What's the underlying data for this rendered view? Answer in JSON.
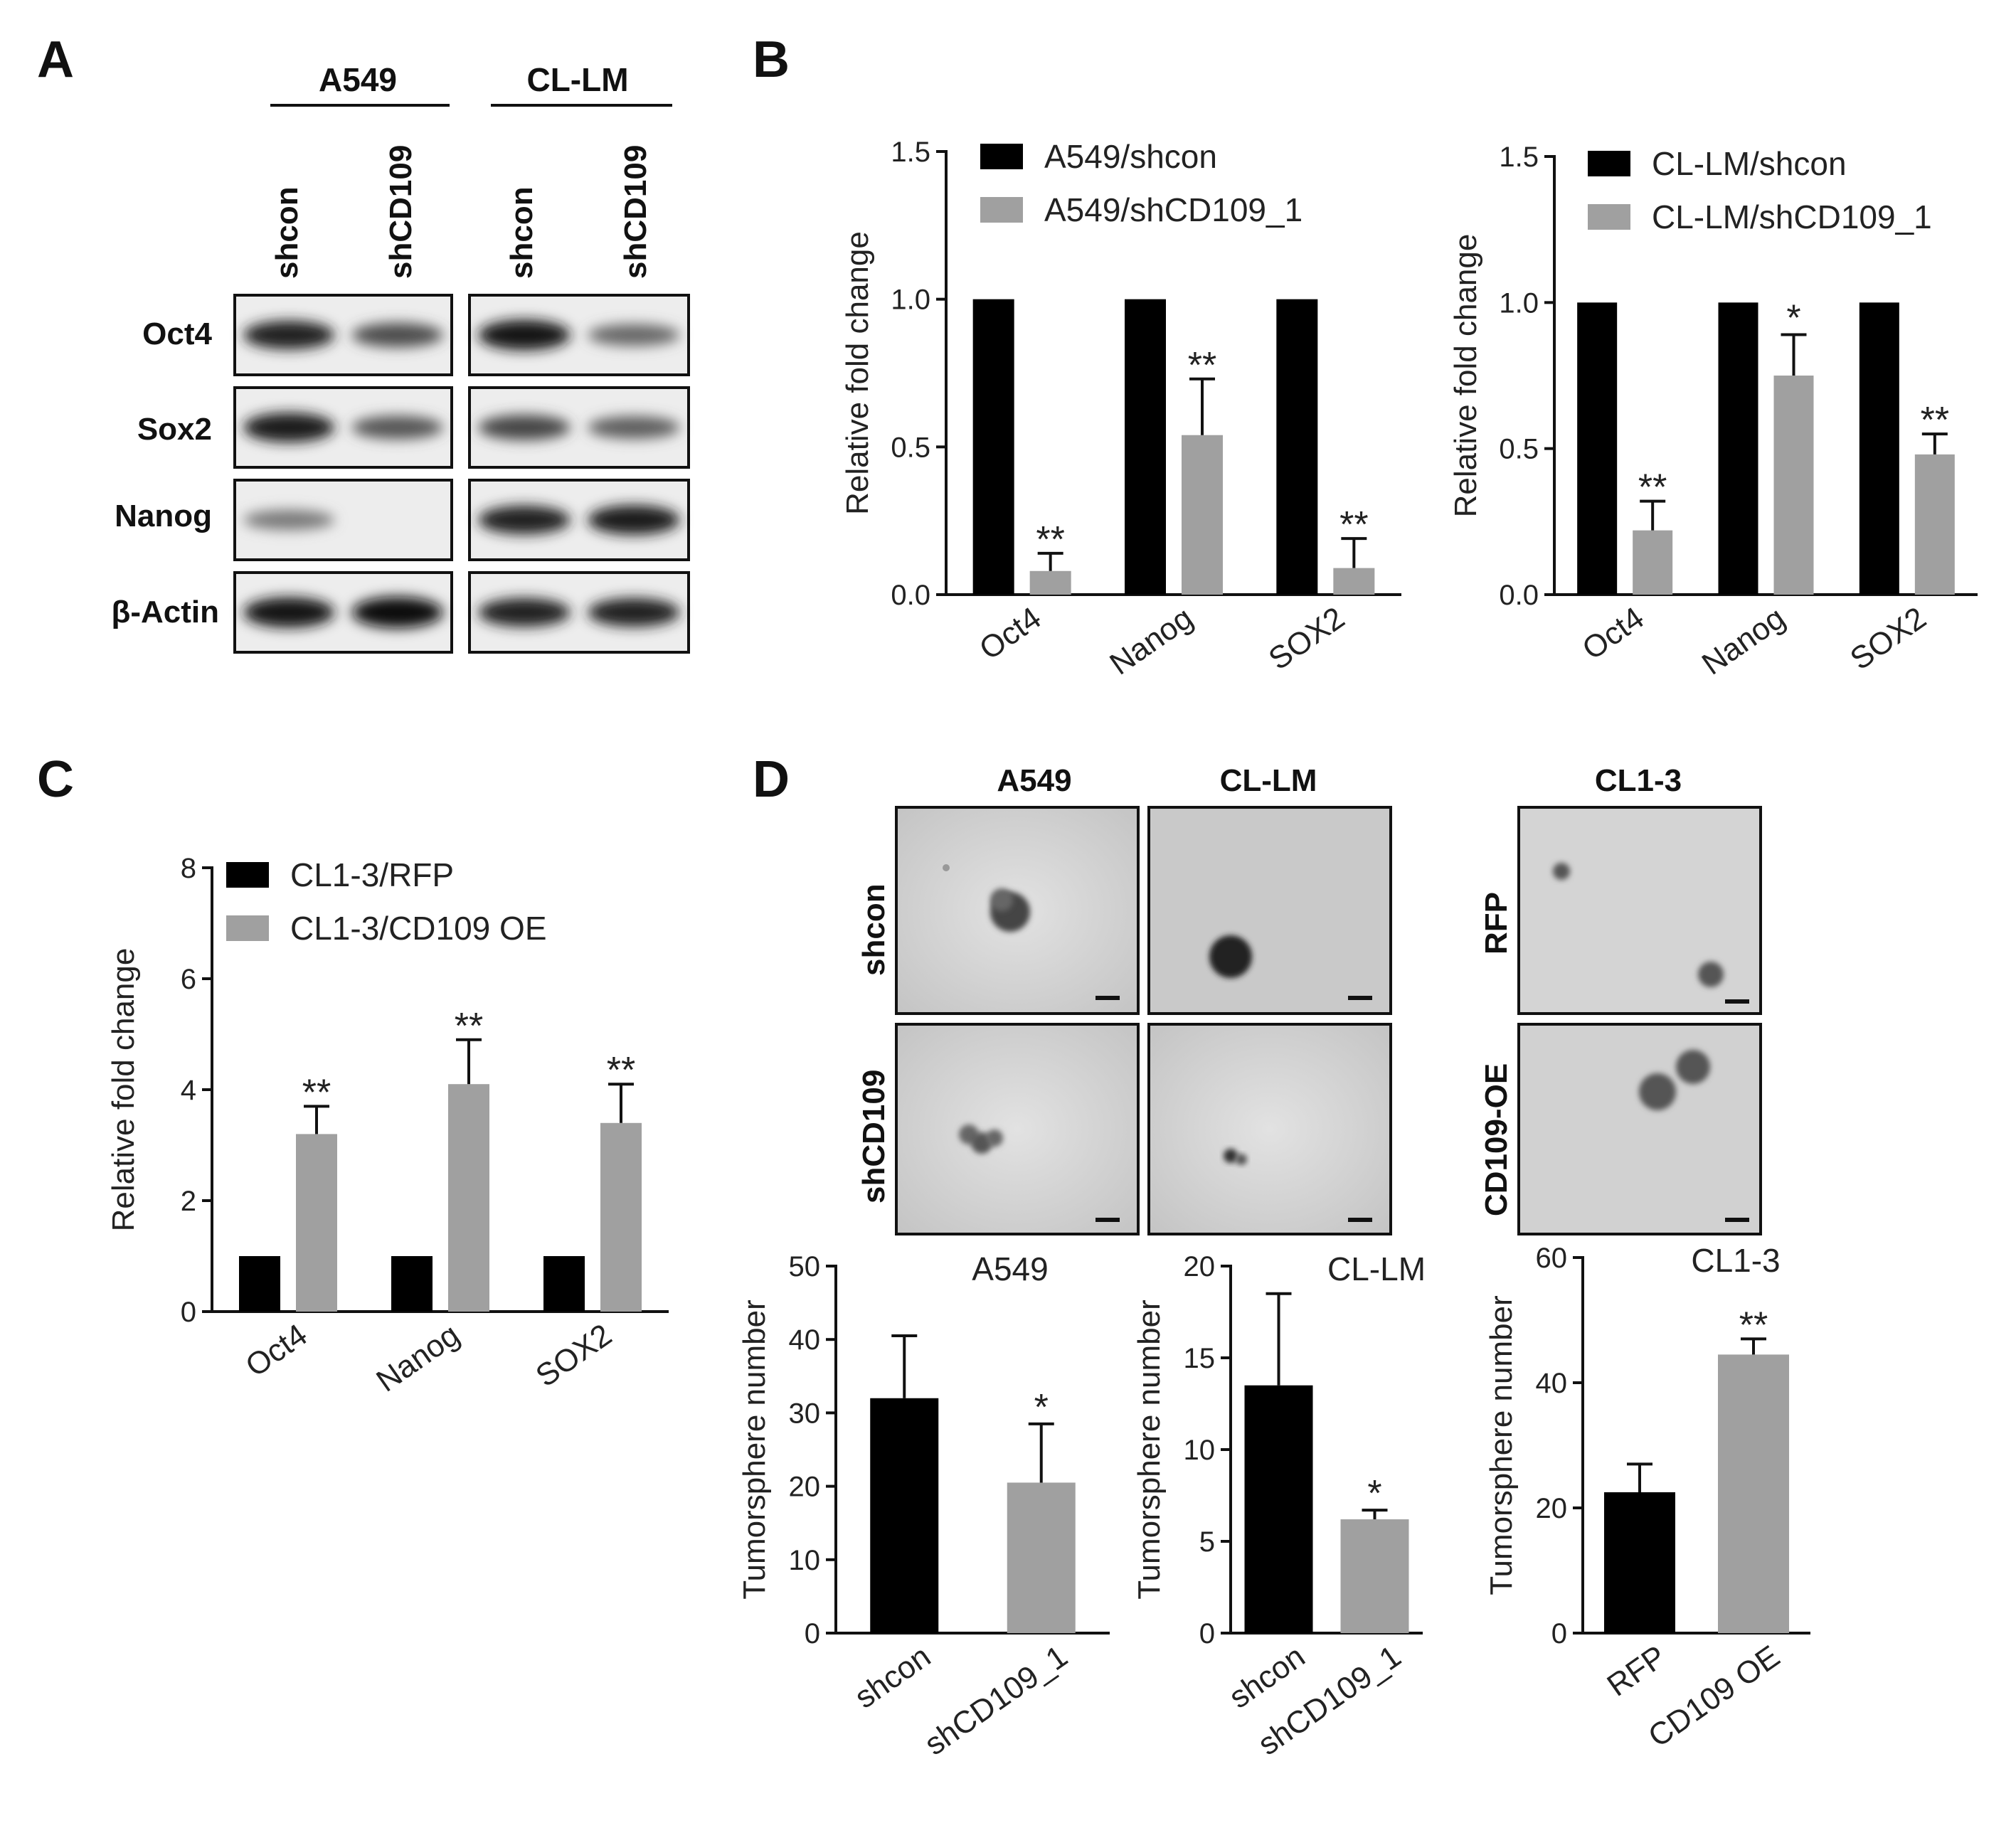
{
  "panels": {
    "A": "A",
    "B": "B",
    "C": "C",
    "D": "D"
  },
  "colors": {
    "black_bar": "#000000",
    "grey_bar": "#a0a0a0",
    "axis": "#111111"
  },
  "panel_a": {
    "groups": [
      {
        "name": "A549",
        "lanes": [
          "shcon",
          "shCD109"
        ]
      },
      {
        "name": "CL-LM",
        "lanes": [
          "shcon",
          "shCD109"
        ]
      }
    ],
    "rows": [
      "Oct4",
      "Sox2",
      "Nanog",
      "β-Actin"
    ],
    "band_intensity": {
      "Oct4": [
        [
          0.85,
          0.6
        ],
        [
          0.95,
          0.45
        ]
      ],
      "Sox2": [
        [
          0.9,
          0.55
        ],
        [
          0.65,
          0.5
        ]
      ],
      "Nanog": [
        [
          0.35,
          0.0
        ],
        [
          0.85,
          0.9
        ]
      ],
      "β-Actin": [
        [
          0.95,
          1.0
        ],
        [
          0.85,
          0.85
        ]
      ]
    }
  },
  "panel_d_images": {
    "left_columns": [
      "A549",
      "CL-LM"
    ],
    "left_rows": [
      "shcon",
      "shCD109"
    ],
    "right_column": "CL1-3",
    "right_rows": [
      "RFP",
      "CD109-OE"
    ]
  },
  "chart_data": [
    {
      "id": "B-left",
      "type": "bar",
      "categories": [
        "Oct4",
        "Nanog",
        "SOX2"
      ],
      "series": [
        {
          "name": "A549/shcon",
          "color": "#000000",
          "values": [
            1.0,
            1.0,
            1.0
          ],
          "errors": [
            0,
            0,
            0
          ]
        },
        {
          "name": "A549/shCD109_1",
          "color": "#a0a0a0",
          "values": [
            0.08,
            0.54,
            0.09
          ],
          "errors": [
            0.06,
            0.19,
            0.1
          ]
        }
      ],
      "significance": [
        "**",
        "**",
        "**"
      ],
      "ylabel": "Relative fold change",
      "ylim": [
        0,
        1.5
      ],
      "yticks": [
        "0.0",
        "0.5",
        "1.0",
        "1.5"
      ],
      "legend": "top-left"
    },
    {
      "id": "B-right",
      "type": "bar",
      "categories": [
        "Oct4",
        "Nanog",
        "SOX2"
      ],
      "series": [
        {
          "name": "CL-LM/shcon",
          "color": "#000000",
          "values": [
            1.0,
            1.0,
            1.0
          ],
          "errors": [
            0,
            0,
            0
          ]
        },
        {
          "name": "CL-LM/shCD109_1",
          "color": "#a0a0a0",
          "values": [
            0.22,
            0.75,
            0.48
          ],
          "errors": [
            0.1,
            0.14,
            0.07
          ]
        }
      ],
      "significance": [
        "**",
        "*",
        "**"
      ],
      "ylabel": "Relative fold change",
      "ylim": [
        0,
        1.5
      ],
      "yticks": [
        "0.0",
        "0.5",
        "1.0",
        "1.5"
      ],
      "legend": "top-left"
    },
    {
      "id": "C",
      "type": "bar",
      "categories": [
        "Oct4",
        "Nanog",
        "SOX2"
      ],
      "series": [
        {
          "name": "CL1-3/RFP",
          "color": "#000000",
          "values": [
            1.0,
            1.0,
            1.0
          ],
          "errors": [
            0,
            0,
            0
          ]
        },
        {
          "name": "CL1-3/CD109 OE",
          "color": "#a0a0a0",
          "values": [
            3.2,
            4.1,
            3.4
          ],
          "errors": [
            0.5,
            0.8,
            0.7
          ]
        }
      ],
      "significance": [
        "**",
        "**",
        "**"
      ],
      "ylabel": "Relative fold change",
      "ylim": [
        0,
        8
      ],
      "yticks": [
        "0",
        "2",
        "4",
        "6",
        "8"
      ],
      "legend": "top-left"
    },
    {
      "id": "D-A549",
      "type": "bar",
      "title": "A549",
      "categories": [
        "shcon",
        "shCD109_1"
      ],
      "values": [
        32,
        20.5
      ],
      "errors": [
        8.5,
        8
      ],
      "colors": [
        "#000000",
        "#a0a0a0"
      ],
      "significance": [
        "",
        "*"
      ],
      "ylabel": "Tumorsphere number",
      "ylim": [
        0,
        50
      ],
      "yticks": [
        "0",
        "10",
        "20",
        "30",
        "40",
        "50"
      ]
    },
    {
      "id": "D-CLLM",
      "type": "bar",
      "title": "CL-LM",
      "categories": [
        "shcon",
        "shCD109_1"
      ],
      "values": [
        13.5,
        6.2
      ],
      "errors": [
        5,
        0.5
      ],
      "colors": [
        "#000000",
        "#a0a0a0"
      ],
      "significance": [
        "",
        "*"
      ],
      "ylabel": "Tumorsphere number",
      "ylim": [
        0,
        20
      ],
      "yticks": [
        "0",
        "5",
        "10",
        "15",
        "20"
      ]
    },
    {
      "id": "D-CL13",
      "type": "bar",
      "title": "CL1-3",
      "categories": [
        "RFP",
        "CD109 OE"
      ],
      "values": [
        22.5,
        44.5
      ],
      "errors": [
        4.5,
        2.5
      ],
      "colors": [
        "#000000",
        "#a0a0a0"
      ],
      "significance": [
        "",
        "**"
      ],
      "ylabel": "Tumorsphere number",
      "ylim": [
        0,
        60
      ],
      "yticks": [
        "0",
        "20",
        "40",
        "60"
      ]
    }
  ]
}
